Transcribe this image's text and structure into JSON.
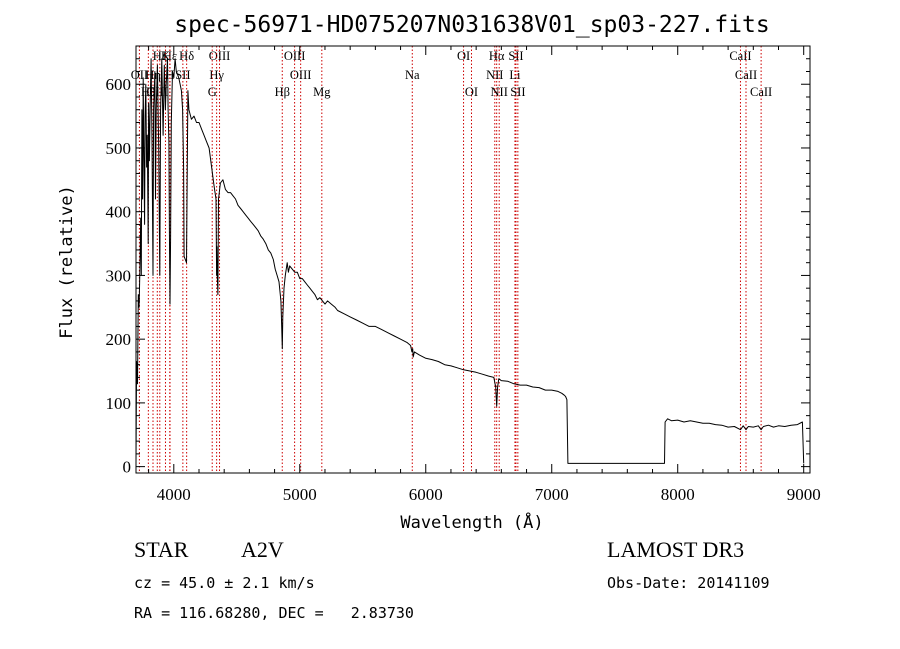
{
  "chart_data": {
    "type": "line",
    "title": "spec-56971-HD075207N031638V01_sp03-227.fits",
    "xlabel": "Wavelength (Å)",
    "ylabel": "Flux (relative)",
    "xlim": [
      3700,
      9050
    ],
    "ylim": [
      -10,
      660
    ],
    "xticks": [
      4000,
      5000,
      6000,
      7000,
      8000,
      9000
    ],
    "yticks": [
      0,
      100,
      200,
      300,
      400,
      500,
      600
    ],
    "series": [
      {
        "name": "spectrum",
        "points": [
          [
            3700,
            5
          ],
          [
            3705,
            165
          ],
          [
            3712,
            130
          ],
          [
            3718,
            270
          ],
          [
            3725,
            250
          ],
          [
            3731,
            310
          ],
          [
            3737,
            390
          ],
          [
            3742,
            300
          ],
          [
            3747,
            560
          ],
          [
            3752,
            420
          ],
          [
            3757,
            610
          ],
          [
            3762,
            500
          ],
          [
            3768,
            380
          ],
          [
            3772,
            550
          ],
          [
            3778,
            600
          ],
          [
            3784,
            470
          ],
          [
            3790,
            520
          ],
          [
            3797,
            350
          ],
          [
            3800,
            570
          ],
          [
            3806,
            480
          ],
          [
            3812,
            560
          ],
          [
            3820,
            640
          ],
          [
            3827,
            510
          ],
          [
            3835,
            300
          ],
          [
            3840,
            560
          ],
          [
            3850,
            620
          ],
          [
            3855,
            420
          ],
          [
            3860,
            560
          ],
          [
            3870,
            630
          ],
          [
            3880,
            500
          ],
          [
            3889,
            300
          ],
          [
            3895,
            560
          ],
          [
            3905,
            640
          ],
          [
            3915,
            520
          ],
          [
            3925,
            630
          ],
          [
            3933,
            560
          ],
          [
            3940,
            600
          ],
          [
            3950,
            640
          ],
          [
            3955,
            560
          ],
          [
            3961,
            510
          ],
          [
            3965,
            370
          ],
          [
            3970,
            255
          ],
          [
            3975,
            360
          ],
          [
            3980,
            540
          ],
          [
            3990,
            620
          ],
          [
            4000,
            610
          ],
          [
            4010,
            640
          ],
          [
            4020,
            620
          ],
          [
            4030,
            615
          ],
          [
            4040,
            610
          ],
          [
            4050,
            600
          ],
          [
            4060,
            590
          ],
          [
            4070,
            560
          ],
          [
            4078,
            470
          ],
          [
            4082,
            330
          ],
          [
            4101,
            320
          ],
          [
            4112,
            590
          ],
          [
            4120,
            560
          ],
          [
            4140,
            545
          ],
          [
            4160,
            550
          ],
          [
            4180,
            540
          ],
          [
            4200,
            540
          ],
          [
            4220,
            530
          ],
          [
            4240,
            520
          ],
          [
            4260,
            510
          ],
          [
            4280,
            500
          ],
          [
            4300,
            470
          ],
          [
            4320,
            440
          ],
          [
            4335,
            420
          ],
          [
            4340,
            300
          ],
          [
            4342,
            345
          ],
          [
            4345,
            300
          ],
          [
            4350,
            270
          ],
          [
            4355,
            420
          ],
          [
            4370,
            445
          ],
          [
            4390,
            450
          ],
          [
            4410,
            435
          ],
          [
            4430,
            430
          ],
          [
            4450,
            430
          ],
          [
            4470,
            425
          ],
          [
            4490,
            420
          ],
          [
            4510,
            410
          ],
          [
            4530,
            405
          ],
          [
            4550,
            400
          ],
          [
            4570,
            395
          ],
          [
            4590,
            390
          ],
          [
            4610,
            385
          ],
          [
            4630,
            380
          ],
          [
            4650,
            375
          ],
          [
            4670,
            370
          ],
          [
            4690,
            362
          ],
          [
            4710,
            357
          ],
          [
            4730,
            350
          ],
          [
            4750,
            340
          ],
          [
            4770,
            335
          ],
          [
            4790,
            325
          ],
          [
            4805,
            310
          ],
          [
            4820,
            300
          ],
          [
            4835,
            290
          ],
          [
            4850,
            260
          ],
          [
            4855,
            230
          ],
          [
            4861,
            185
          ],
          [
            4865,
            235
          ],
          [
            4875,
            280
          ],
          [
            4885,
            300
          ],
          [
            4900,
            320
          ],
          [
            4910,
            305
          ],
          [
            4920,
            315
          ],
          [
            4940,
            310
          ],
          [
            4960,
            305
          ],
          [
            4980,
            305
          ],
          [
            5000,
            295
          ],
          [
            5020,
            295
          ],
          [
            5040,
            290
          ],
          [
            5060,
            285
          ],
          [
            5080,
            280
          ],
          [
            5100,
            275
          ],
          [
            5120,
            270
          ],
          [
            5140,
            262
          ],
          [
            5160,
            265
          ],
          [
            5180,
            260
          ],
          [
            5200,
            255
          ],
          [
            5220,
            260
          ],
          [
            5250,
            255
          ],
          [
            5280,
            250
          ],
          [
            5300,
            245
          ],
          [
            5350,
            240
          ],
          [
            5400,
            235
          ],
          [
            5450,
            230
          ],
          [
            5500,
            225
          ],
          [
            5550,
            220
          ],
          [
            5600,
            220
          ],
          [
            5650,
            215
          ],
          [
            5700,
            210
          ],
          [
            5750,
            205
          ],
          [
            5800,
            200
          ],
          [
            5850,
            195
          ],
          [
            5880,
            190
          ],
          [
            5890,
            180
          ],
          [
            5896,
            185
          ],
          [
            5900,
            172
          ],
          [
            5910,
            180
          ],
          [
            5950,
            175
          ],
          [
            6000,
            170
          ],
          [
            6050,
            168
          ],
          [
            6100,
            165
          ],
          [
            6150,
            160
          ],
          [
            6200,
            158
          ],
          [
            6250,
            155
          ],
          [
            6300,
            152
          ],
          [
            6350,
            150
          ],
          [
            6400,
            148
          ],
          [
            6450,
            145
          ],
          [
            6500,
            142
          ],
          [
            6540,
            140
          ],
          [
            6555,
            125
          ],
          [
            6563,
            95
          ],
          [
            6570,
            125
          ],
          [
            6580,
            138
          ],
          [
            6600,
            135
          ],
          [
            6650,
            134
          ],
          [
            6700,
            130
          ],
          [
            6750,
            128
          ],
          [
            6800,
            128
          ],
          [
            6850,
            125
          ],
          [
            6900,
            124
          ],
          [
            6950,
            120
          ],
          [
            7000,
            120
          ],
          [
            7050,
            118
          ],
          [
            7080,
            115
          ],
          [
            7100,
            112
          ],
          [
            7110,
            110
          ],
          [
            7120,
            105
          ],
          [
            7128,
            5
          ],
          [
            7200,
            5
          ],
          [
            7300,
            5
          ],
          [
            7400,
            5
          ],
          [
            7500,
            5
          ],
          [
            7600,
            5
          ],
          [
            7700,
            5
          ],
          [
            7800,
            5
          ],
          [
            7895,
            5
          ],
          [
            7900,
            70
          ],
          [
            7920,
            75
          ],
          [
            7950,
            72
          ],
          [
            8000,
            73
          ],
          [
            8050,
            70
          ],
          [
            8100,
            72
          ],
          [
            8150,
            70
          ],
          [
            8200,
            68
          ],
          [
            8250,
            68
          ],
          [
            8300,
            66
          ],
          [
            8350,
            65
          ],
          [
            8400,
            62
          ],
          [
            8450,
            63
          ],
          [
            8498,
            58
          ],
          [
            8520,
            64
          ],
          [
            8542,
            58
          ],
          [
            8560,
            63
          ],
          [
            8600,
            62
          ],
          [
            8640,
            64
          ],
          [
            8662,
            58
          ],
          [
            8680,
            63
          ],
          [
            8720,
            65
          ],
          [
            8760,
            62
          ],
          [
            8800,
            64
          ],
          [
            8850,
            63
          ],
          [
            8900,
            65
          ],
          [
            8950,
            66
          ],
          [
            8990,
            70
          ],
          [
            9000,
            5
          ]
        ]
      }
    ],
    "line_markers": [
      {
        "label": "Hε",
        "wavelength": 3970,
        "row": 0
      },
      {
        "label": "Hζ",
        "wavelength": 3889,
        "row": 0
      },
      {
        "label": "K",
        "wavelength": 3934,
        "row": 0
      },
      {
        "label": "Hδ",
        "wavelength": 4102,
        "row": 0
      },
      {
        "label": "OIII",
        "wavelength": 4363,
        "row": 0
      },
      {
        "label": "OIII",
        "wavelength": 4959,
        "row": 0
      },
      {
        "label": "OI",
        "wavelength": 6300,
        "row": 0
      },
      {
        "label": "Hα",
        "wavelength": 6563,
        "row": 0
      },
      {
        "label": "SII",
        "wavelength": 6716,
        "row": 0
      },
      {
        "label": "CaII",
        "wavelength": 8498,
        "row": 0
      },
      {
        "label": "OII",
        "wavelength": 3727,
        "row": 1
      },
      {
        "label": "Hη",
        "wavelength": 3835,
        "row": 1
      },
      {
        "label": "H",
        "wavelength": 3968,
        "row": 1
      },
      {
        "label": "SII",
        "wavelength": 4072,
        "row": 1
      },
      {
        "label": "Hγ",
        "wavelength": 4340,
        "row": 1
      },
      {
        "label": "OIII",
        "wavelength": 5007,
        "row": 1
      },
      {
        "label": "Na",
        "wavelength": 5893,
        "row": 1
      },
      {
        "label": "NII",
        "wavelength": 6548,
        "row": 1
      },
      {
        "label": "Li",
        "wavelength": 6708,
        "row": 1
      },
      {
        "label": "CaII",
        "wavelength": 8542,
        "row": 1
      },
      {
        "label": "OIII",
        "wavelength": 3869,
        "row": 2
      },
      {
        "label": "Hθ",
        "wavelength": 3798,
        "row": 2
      },
      {
        "label": "G",
        "wavelength": 4305,
        "row": 2
      },
      {
        "label": "Hβ",
        "wavelength": 4861,
        "row": 2
      },
      {
        "label": "Mg",
        "wavelength": 5175,
        "row": 2
      },
      {
        "label": "OI",
        "wavelength": 6363,
        "row": 2
      },
      {
        "label": "NII",
        "wavelength": 6583,
        "row": 2
      },
      {
        "label": "SII",
        "wavelength": 6731,
        "row": 2
      },
      {
        "label": "CaII",
        "wavelength": 8662,
        "row": 2
      }
    ],
    "colors": {
      "spectrum": "#000000",
      "marker": "#cc0000"
    }
  },
  "info": {
    "object_class": "STAR",
    "subclass": "A2V",
    "survey": "LAMOST DR3",
    "cz": "cz = 45.0 ± 2.1 km/s",
    "obs_date": "Obs-Date: 20141109",
    "coords": "RA = 116.68280, DEC =   2.83730"
  }
}
